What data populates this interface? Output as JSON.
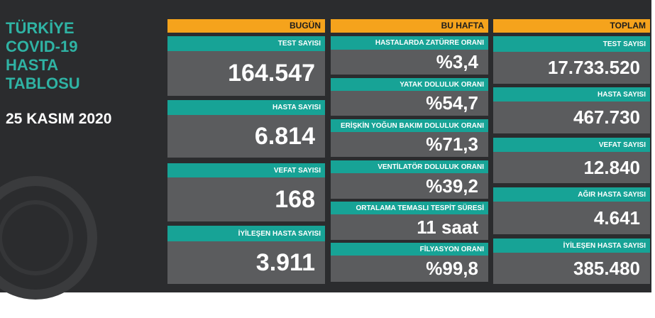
{
  "header": {
    "title": [
      "TÜRKİYE",
      "COVID-19",
      "HASTA",
      "TABLOSU"
    ],
    "date": "25 KASIM 2020"
  },
  "columns": [
    {
      "header": "BUGÜN",
      "items": [
        {
          "label": "TEST SAYISI",
          "value": "164.547"
        },
        {
          "label": "HASTA SAYISI",
          "value": "6.814"
        },
        {
          "label": "VEFAT SAYISI",
          "value": "168"
        },
        {
          "label": "İYİLEŞEN HASTA SAYISI",
          "value": "3.911"
        }
      ]
    },
    {
      "header": "BU HAFTA",
      "items": [
        {
          "label": "HASTALARDA ZATÜRRE ORANI",
          "value": "%3,4"
        },
        {
          "label": "YATAK DOLULUK ORANI",
          "value": "%54,7"
        },
        {
          "label": "ERİŞKİN YOĞUN BAKIM DOLULUK ORANI",
          "value": "%71,3"
        },
        {
          "label": "VENTİLATÖR DOLULUK ORANI",
          "value": "%39,2"
        },
        {
          "label": "ORTALAMA TEMASLI TESPİT SÜRESİ",
          "value": "11 saat"
        },
        {
          "label": "FİLYASYON ORANI",
          "value": "%99,8"
        }
      ]
    },
    {
      "header": "TOPLAM",
      "items": [
        {
          "label": "TEST SAYISI",
          "value": "17.733.520"
        },
        {
          "label": "HASTA SAYISI",
          "value": "467.730"
        },
        {
          "label": "VEFAT SAYISI",
          "value": "12.840"
        },
        {
          "label": "AĞIR HASTA SAYISI",
          "value": "4.641"
        },
        {
          "label": "İYİLEŞEN HASTA SAYISI",
          "value": "385.480"
        }
      ]
    }
  ]
}
